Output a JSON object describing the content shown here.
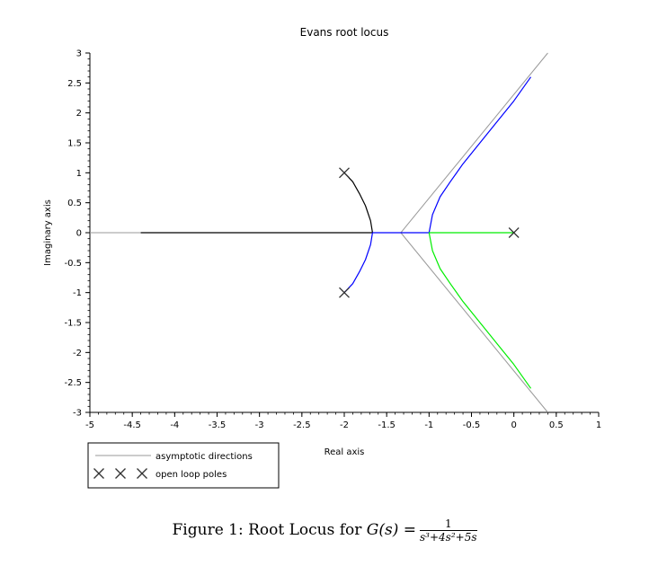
{
  "chart_data": {
    "type": "line",
    "title": "Evans root locus",
    "xlabel": "Real axis",
    "ylabel": "Imaginary axis",
    "xlim": [
      -5,
      1
    ],
    "ylim": [
      -3,
      3
    ],
    "xticks": [
      "-5",
      "-4.5",
      "-4",
      "-3.5",
      "-3",
      "-2.5",
      "-2",
      "-1.5",
      "-1",
      "-0.5",
      "0",
      "0.5",
      "1"
    ],
    "yticks": [
      "3",
      "2.5",
      "2",
      "1.5",
      "1",
      "0.5",
      "0",
      "-0.5",
      "-1",
      "-1.5",
      "-2",
      "-2.5",
      "-3"
    ],
    "grid": false,
    "legend_position": "below-left",
    "legend": {
      "asymptotes_label": "asymptotic directions",
      "poles_label": "open loop poles"
    },
    "asymptotes": {
      "color": "#999999",
      "centroid": [
        -1.333,
        0
      ],
      "lines": [
        {
          "x": [
            -1.333,
            0.4
          ],
          "y": [
            0,
            3
          ]
        },
        {
          "x": [
            -1.333,
            0.4
          ],
          "y": [
            0,
            -3
          ]
        },
        {
          "x": [
            -1.333,
            -5
          ],
          "y": [
            0,
            0
          ]
        }
      ]
    },
    "poles": [
      {
        "x": 0,
        "y": 0
      },
      {
        "x": -2,
        "y": 1
      },
      {
        "x": -2,
        "y": -1
      }
    ],
    "series": [
      {
        "color": "#000000",
        "x": [
          -4.4,
          -1.667,
          -1.667,
          -1.69,
          -1.75,
          -1.82,
          -1.9,
          -2.0
        ],
        "y": [
          0,
          0,
          0,
          0.2,
          0.45,
          0.65,
          0.85,
          1.0
        ]
      },
      {
        "color": "#0000ff",
        "x": [
          -1.667,
          -1.69,
          -1.75,
          -1.82,
          -1.9,
          -2.0
        ],
        "y": [
          0,
          -0.2,
          -0.45,
          -0.65,
          -0.85,
          -1.0
        ]
      },
      {
        "color": "#0000ff",
        "x": [
          -1.667,
          -1.0,
          -1.0,
          -0.96,
          -0.87,
          -0.75,
          -0.6,
          -0.4,
          -0.2,
          0.0,
          0.2
        ],
        "y": [
          0,
          0,
          0,
          0.3,
          0.6,
          0.85,
          1.15,
          1.5,
          1.85,
          2.2,
          2.6
        ]
      },
      {
        "color": "#00ee00",
        "x": [
          0,
          -1.0,
          -1.0,
          -0.96,
          -0.87,
          -0.75,
          -0.6,
          -0.4,
          -0.2,
          0.0,
          0.2
        ],
        "y": [
          0,
          0,
          0,
          -0.3,
          -0.6,
          -0.85,
          -1.15,
          -1.5,
          -1.85,
          -2.2,
          -2.6
        ]
      }
    ]
  },
  "caption": {
    "prefix": "Figure 1: Root Locus for ",
    "lhs": "G(s) =",
    "numerator": "1",
    "denominator": "s³+4s²+5s"
  }
}
